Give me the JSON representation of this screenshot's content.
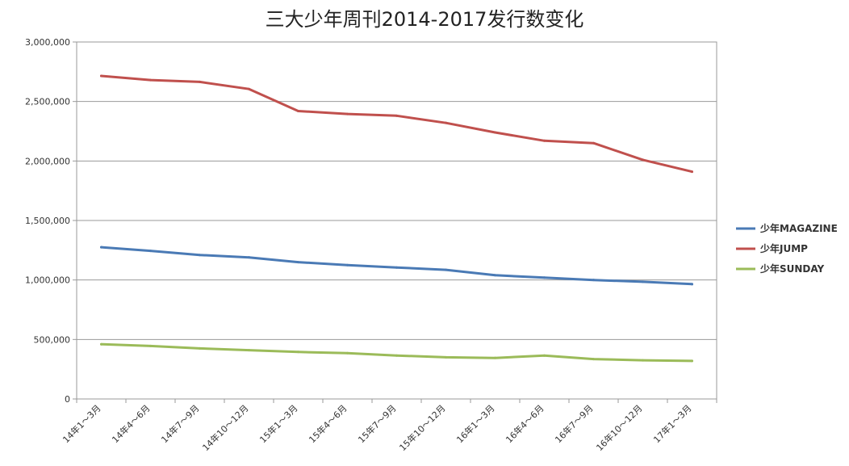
{
  "chart_data": {
    "type": "line",
    "title": "三大少年周刊2014-2017发行数变化",
    "xlabel": "",
    "ylabel": "",
    "ylim": [
      0,
      3000000
    ],
    "y_ticks": [
      "0",
      "500,000",
      "1,000,000",
      "1,500,000",
      "2,000,000",
      "2,500,000",
      "3,000,000"
    ],
    "categories": [
      "14年1～3月",
      "14年4～6月",
      "14年7～9月",
      "14年10～12月",
      "15年1～3月",
      "15年4～6月",
      "15年7～9月",
      "15年10～12月",
      "16年1～3月",
      "16年4～6月",
      "16年7～9月",
      "16年10～12月",
      "17年1～3月"
    ],
    "grid": true,
    "legend_position": "right",
    "series": [
      {
        "name": "少年MAGAZINE",
        "color": "#4a7ab5",
        "values": [
          1275000,
          1245000,
          1210000,
          1190000,
          1150000,
          1125000,
          1105000,
          1085000,
          1040000,
          1020000,
          1000000,
          985000,
          965000
        ]
      },
      {
        "name": "少年JUMP",
        "color": "#c0504d",
        "values": [
          2715000,
          2680000,
          2665000,
          2605000,
          2420000,
          2395000,
          2380000,
          2320000,
          2240000,
          2170000,
          2150000,
          2010000,
          1910000
        ]
      },
      {
        "name": "少年SUNDAY",
        "color": "#9bbb59",
        "values": [
          460000,
          445000,
          425000,
          410000,
          395000,
          385000,
          365000,
          350000,
          345000,
          365000,
          335000,
          325000,
          320000
        ]
      }
    ]
  }
}
